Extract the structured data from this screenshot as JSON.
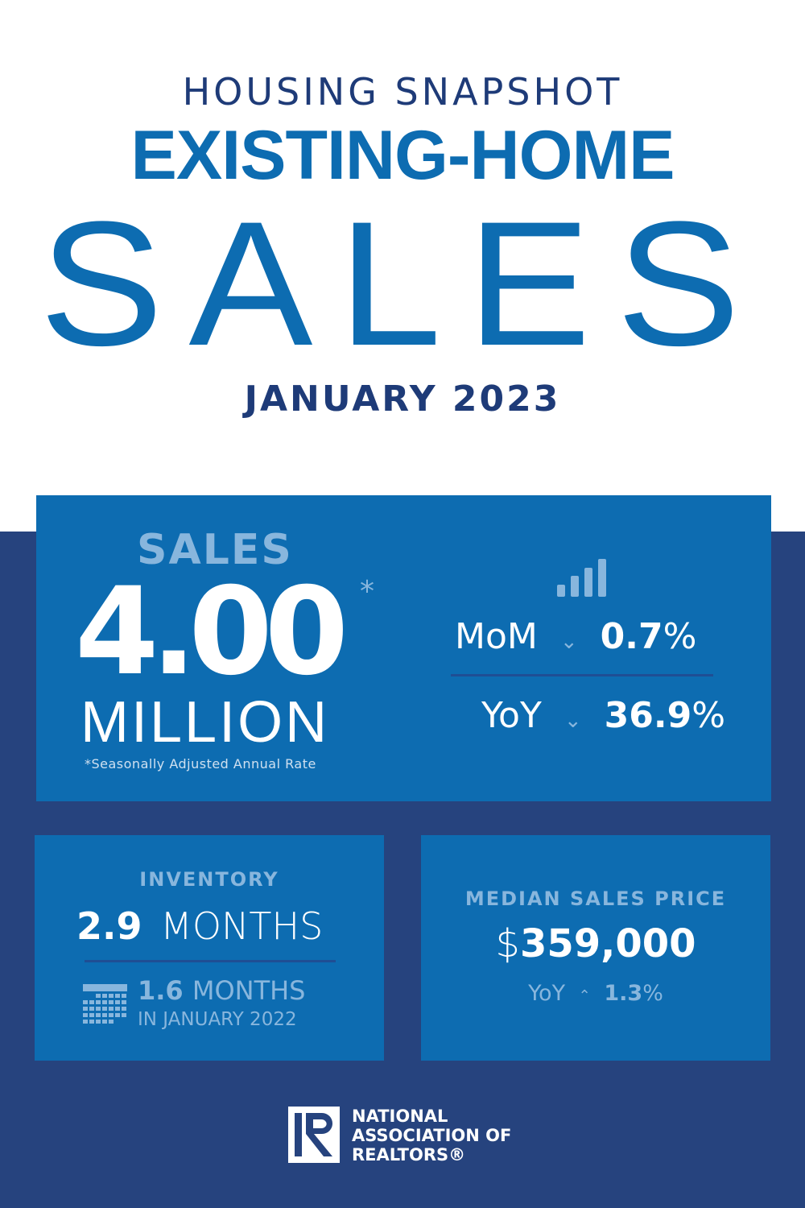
{
  "header": {
    "eyebrow": "HOUSING SNAPSHOT",
    "title": "EXISTING-HOME",
    "big": "SALES",
    "period": "JANUARY 2023"
  },
  "sales": {
    "label": "SALES",
    "value": "4.00",
    "asterisk": "*",
    "unit": "MILLION",
    "footnote": "*Seasonally Adjusted Annual Rate",
    "mom": {
      "label": "MoM",
      "direction": "down",
      "value": "0.7",
      "pct": "%"
    },
    "yoy": {
      "label": "YoY",
      "direction": "down",
      "value": "36.9",
      "pct": "%"
    }
  },
  "inventory": {
    "label": "INVENTORY",
    "value": "2.9",
    "unit": "MONTHS",
    "prior_value": "1.6",
    "prior_unit": "MONTHS",
    "prior_period": "IN JANUARY 2022"
  },
  "price": {
    "label": "MEDIAN SALES PRICE",
    "currency": "$",
    "value": "359,000",
    "yoy_label": "YoY",
    "direction": "up",
    "yoy_value": "1.3",
    "pct": "%"
  },
  "logo": {
    "line1": "NATIONAL",
    "line2": "ASSOCIATION OF",
    "line3": "REALTORS®"
  },
  "colors": {
    "blue": "#0D6CB1",
    "navy": "#26437E",
    "light": "#88B6DD"
  }
}
